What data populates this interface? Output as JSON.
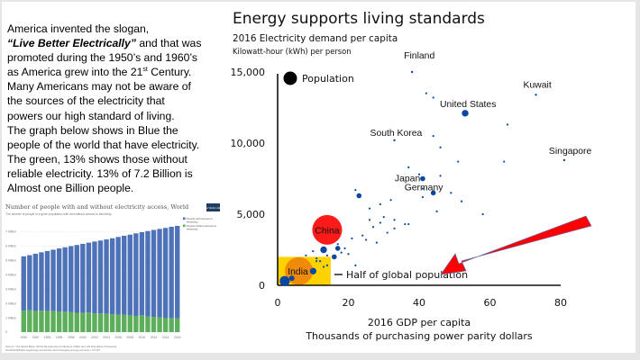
{
  "intro": {
    "line1": "America invented the slogan,",
    "slogan": "“Live Better Electrically”",
    "line2_rest": " and that was",
    "line3": "promoted during the 1950’s and 1960’s",
    "line4_pre": "as America grew into the 21",
    "line4_sup": "st",
    "line4_post": " Century.",
    "line5": "Many Americans may not be aware of",
    "line6": "the sources of the electricity that",
    "line7": "powers our high standard of living.",
    "line8": "The graph below shows in Blue the",
    "line9": "people of the world that have electricity.",
    "line10": "The green, 13% shows those without",
    "line11": "reliable electricity. 13% of 7.2 Billion is",
    "line12": "Almost one Billion people."
  },
  "colors": {
    "with_access": "#4e72b8",
    "without_access": "#5cae5a",
    "scatter_point": "#0b47a1",
    "china": "#ff1a1a",
    "india": "#f08a0b",
    "highlight_box": "#ffd200",
    "arrow": "#ff0000"
  },
  "chart_data": [
    {
      "type": "bar",
      "stacked": true,
      "title": "Number of people with and without electricity access, World",
      "subtitle": "The number of people in a given population with and without access to electricity.",
      "badge": "Our World in Data",
      "categories": [
        "1990",
        "1991",
        "1992",
        "1993",
        "1994",
        "1995",
        "1996",
        "1997",
        "1998",
        "1999",
        "2000",
        "2001",
        "2002",
        "2003",
        "2004",
        "2005",
        "2006",
        "2007",
        "2008",
        "2009",
        "2010",
        "2011",
        "2012",
        "2013",
        "2014",
        "2015",
        "2016"
      ],
      "x_tick_labels": [
        "1990",
        "1992",
        "1994",
        "1996",
        "1998",
        "2000",
        "2002",
        "2004",
        "2006",
        "2008",
        "2010",
        "2012",
        "2014",
        "2016"
      ],
      "y_tick_labels": [
        "0",
        "1 billion",
        "2 billion",
        "3 billion",
        "4 billion",
        "5 billion",
        "6 billion",
        "7 billion"
      ],
      "ylim": [
        0,
        7400000000
      ],
      "series": [
        {
          "name": "People without access to electricity",
          "values": [
            1500000000,
            1520000000,
            1480000000,
            1490000000,
            1480000000,
            1480000000,
            1440000000,
            1420000000,
            1390000000,
            1350000000,
            1340000000,
            1370000000,
            1300000000,
            1300000000,
            1270000000,
            1250000000,
            1220000000,
            1200000000,
            1190000000,
            1130000000,
            1170000000,
            1090000000,
            1060000000,
            1030000000,
            980000000,
            980000000,
            950000000
          ]
        },
        {
          "name": "People with access to electricity",
          "values": [
            3780000000,
            3840000000,
            3980000000,
            4070000000,
            4170000000,
            4260000000,
            4390000000,
            4490000000,
            4600000000,
            4720000000,
            4810000000,
            4860000000,
            5010000000,
            5080000000,
            5190000000,
            5290000000,
            5410000000,
            5510000000,
            5600000000,
            5750000000,
            5790000000,
            5950000000,
            6060000000,
            6160000000,
            6280000000,
            6360000000,
            6450000000
          ]
        }
      ],
      "legend": [
        "People with access to electricity",
        "People without access to electricity"
      ],
      "legend_position": "right",
      "source": "Source: The World Bank, World Development Indicators (WDI) and UN Population Prospects",
      "source2": "OurWorldInData.org/energy-production-and-changing-energy-sources/ • CC BY"
    },
    {
      "type": "scatter",
      "title": "Energy supports living standards",
      "subtitle": "2016 Electricity demand per capita",
      "subtitle2": "Kilowatt-hour (kWh) per person",
      "xlabel": "2016 GDP per capita",
      "xlabel2": "Thousands of purchasing power parity dollars",
      "xlim": [
        0,
        80
      ],
      "ylim": [
        0,
        15000
      ],
      "x_ticks": [
        "0",
        "20",
        "40",
        "60",
        "80"
      ],
      "y_ticks": [
        "0",
        "5,000",
        "10,000",
        "15,000"
      ],
      "legend_label": "Population",
      "annotation": "Half of global population",
      "labeled_points": [
        {
          "name": "Finland",
          "x": 38,
          "y": 15000,
          "size": 1
        },
        {
          "name": "Kuwait",
          "x": 73,
          "y": 13400,
          "size": 1
        },
        {
          "name": "United States",
          "x": 53,
          "y": 12100,
          "size": 3
        },
        {
          "name": "South Korea",
          "x": 33,
          "y": 10200,
          "size": 1
        },
        {
          "name": "Singapore",
          "x": 81,
          "y": 8800,
          "size": 1
        },
        {
          "name": "Japan",
          "x": 41,
          "y": 7500,
          "size": 2
        },
        {
          "name": "Germany",
          "x": 44,
          "y": 6500,
          "size": 2
        },
        {
          "name": "China",
          "x": 14,
          "y": 3900,
          "size": 10
        },
        {
          "name": "India",
          "x": 6,
          "y": 1000,
          "size": 9
        }
      ],
      "points": [
        {
          "x": 42,
          "y": 13500
        },
        {
          "x": 44,
          "y": 13200
        },
        {
          "x": 65,
          "y": 11300
        },
        {
          "x": 44,
          "y": 10500
        },
        {
          "x": 46,
          "y": 9700
        },
        {
          "x": 51,
          "y": 8700
        },
        {
          "x": 64,
          "y": 8700
        },
        {
          "x": 37,
          "y": 8300
        },
        {
          "x": 46,
          "y": 7700
        },
        {
          "x": 40,
          "y": 7800
        },
        {
          "x": 41,
          "y": 6800
        },
        {
          "x": 41,
          "y": 6200
        },
        {
          "x": 49,
          "y": 6500
        },
        {
          "x": 52,
          "y": 5900
        },
        {
          "x": 58,
          "y": 5000
        },
        {
          "x": 45,
          "y": 5200
        },
        {
          "x": 23,
          "y": 6300,
          "size": 2
        },
        {
          "x": 22,
          "y": 6700
        },
        {
          "x": 32,
          "y": 6000
        },
        {
          "x": 29,
          "y": 5700
        },
        {
          "x": 26,
          "y": 5400
        },
        {
          "x": 30,
          "y": 4800
        },
        {
          "x": 26,
          "y": 4600
        },
        {
          "x": 29,
          "y": 4400
        },
        {
          "x": 33,
          "y": 4600
        },
        {
          "x": 36,
          "y": 4300
        },
        {
          "x": 27,
          "y": 4100
        },
        {
          "x": 33,
          "y": 4000
        },
        {
          "x": 37,
          "y": 4300
        },
        {
          "x": 31,
          "y": 3700
        },
        {
          "x": 24,
          "y": 3500
        },
        {
          "x": 25,
          "y": 3200
        },
        {
          "x": 28,
          "y": 3000
        },
        {
          "x": 21,
          "y": 3300
        },
        {
          "x": 15,
          "y": 3100
        },
        {
          "x": 17,
          "y": 2900
        },
        {
          "x": 17,
          "y": 2600,
          "size": 2
        },
        {
          "x": 19,
          "y": 2600
        },
        {
          "x": 18,
          "y": 2300
        },
        {
          "x": 13,
          "y": 2500,
          "size": 3
        },
        {
          "x": 14,
          "y": 2100
        },
        {
          "x": 20,
          "y": 2200
        },
        {
          "x": 16,
          "y": 2000,
          "size": 2
        },
        {
          "x": 10,
          "y": 2400
        },
        {
          "x": 8,
          "y": 2100
        },
        {
          "x": 11,
          "y": 1900
        },
        {
          "x": 12,
          "y": 1700
        },
        {
          "x": 4,
          "y": 1500
        },
        {
          "x": 6,
          "y": 1600,
          "size": 2
        },
        {
          "x": 9,
          "y": 1500
        },
        {
          "x": 11,
          "y": 1700
        },
        {
          "x": 13,
          "y": 1300
        },
        {
          "x": 14,
          "y": 1400
        },
        {
          "x": 22,
          "y": 1400
        },
        {
          "x": 5,
          "y": 1200
        },
        {
          "x": 8,
          "y": 1100
        },
        {
          "x": 10,
          "y": 1000,
          "size": 3
        },
        {
          "x": 4,
          "y": 700
        },
        {
          "x": 2,
          "y": 300,
          "size": 5
        },
        {
          "x": 4,
          "y": 500,
          "size": 3
        }
      ]
    }
  ]
}
